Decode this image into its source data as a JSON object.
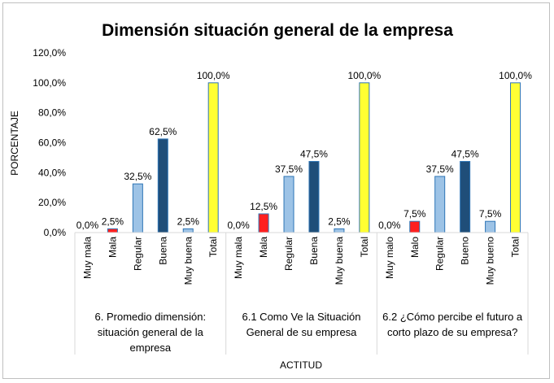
{
  "chart_data": {
    "type": "bar",
    "title": "Dimensión situación general de la empresa",
    "xlabel": "ACTITUD",
    "ylabel": "PORCENTAJE",
    "ylim": [
      0,
      120
    ],
    "y_ticks": [
      "0,0%",
      "20,0%",
      "40,0%",
      "60,0%",
      "80,0%",
      "100,0%",
      "120,0%"
    ],
    "grid": false,
    "legend": "none",
    "colors": {
      "muy_mala": "#9dc3e6",
      "mala": "#ff2020",
      "regular": "#9dc3e6",
      "buena": "#1f4e79",
      "muy_buena": "#9dc3e6",
      "total": "#ffff33",
      "bar_border": "#2e75b6"
    },
    "groups": [
      {
        "label_lines": [
          "6. Promedio dimensión:",
          "situación general de la",
          "empresa"
        ],
        "bars": [
          {
            "category": "Muy mala",
            "value": 0.0,
            "label": "0,0%",
            "color_key": "muy_mala"
          },
          {
            "category": "Mala",
            "value": 2.5,
            "label": "2,5%",
            "color_key": "mala"
          },
          {
            "category": "Regular",
            "value": 32.5,
            "label": "32,5%",
            "color_key": "regular"
          },
          {
            "category": "Buena",
            "value": 62.5,
            "label": "62,5%",
            "color_key": "buena"
          },
          {
            "category": "Muy buena",
            "value": 2.5,
            "label": "2,5%",
            "color_key": "muy_buena"
          },
          {
            "category": "Total",
            "value": 100.0,
            "label": "100,0%",
            "color_key": "total"
          }
        ]
      },
      {
        "label_lines": [
          "6.1 Como Ve la Situación",
          "General de su empresa"
        ],
        "bars": [
          {
            "category": "Muy mala",
            "value": 0.0,
            "label": "0,0%",
            "color_key": "muy_mala"
          },
          {
            "category": "Mala",
            "value": 12.5,
            "label": "12,5%",
            "color_key": "mala"
          },
          {
            "category": "Regular",
            "value": 37.5,
            "label": "37,5%",
            "color_key": "regular"
          },
          {
            "category": "Buena",
            "value": 47.5,
            "label": "47,5%",
            "color_key": "buena"
          },
          {
            "category": "Muy buena",
            "value": 2.5,
            "label": "2,5%",
            "color_key": "muy_buena"
          },
          {
            "category": "Total",
            "value": 100.0,
            "label": "100,0%",
            "color_key": "total"
          }
        ]
      },
      {
        "label_lines": [
          "6.2 ¿Cómo percibe el futuro a",
          "corto plazo  de su empresa?"
        ],
        "bars": [
          {
            "category": "Muy malo",
            "value": 0.0,
            "label": "0,0%",
            "color_key": "muy_mala"
          },
          {
            "category": "Malo",
            "value": 7.5,
            "label": "7,5%",
            "color_key": "mala"
          },
          {
            "category": "Regular",
            "value": 37.5,
            "label": "37,5%",
            "color_key": "regular"
          },
          {
            "category": "Bueno",
            "value": 47.5,
            "label": "47,5%",
            "color_key": "buena"
          },
          {
            "category": "Muy bueno",
            "value": 7.5,
            "label": "7,5%",
            "color_key": "muy_buena"
          },
          {
            "category": "Total",
            "value": 100.0,
            "label": "100,0%",
            "color_key": "total"
          }
        ]
      }
    ]
  }
}
